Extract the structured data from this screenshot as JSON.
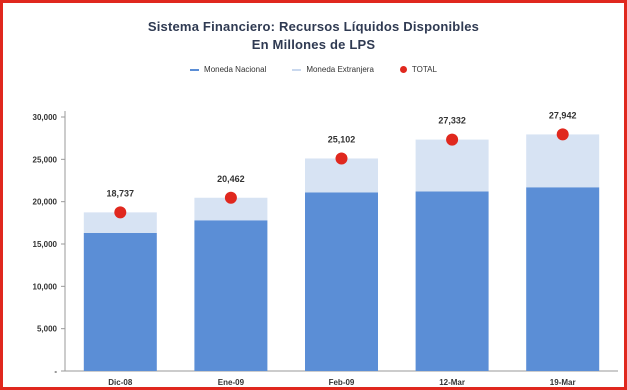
{
  "chart_data": {
    "type": "bar",
    "title": "Sistema Financiero: Recursos Líquidos Disponibles",
    "subtitle": "En Millones de LPS",
    "categories": [
      "Dic-08",
      "Ene-09",
      "Feb-09",
      "12-Mar",
      "19-Mar"
    ],
    "series": [
      {
        "name": "Moneda Nacional",
        "kind": "stacked-bar",
        "color": "#5b8ed6",
        "values": [
          16300,
          17800,
          21100,
          21200,
          21700
        ]
      },
      {
        "name": "Moneda Extranjera",
        "kind": "stacked-bar",
        "color": "#d7e3f3",
        "values": [
          2437,
          2662,
          4002,
          6132,
          6242
        ]
      },
      {
        "name": "TOTAL",
        "kind": "point",
        "color": "#e0281e",
        "values": [
          18737,
          20462,
          25102,
          27332,
          27942
        ]
      }
    ],
    "data_labels": [
      "18,737",
      "20,462",
      "25,102",
      "27,332",
      "27,942"
    ],
    "y_ticks": [
      0,
      5000,
      10000,
      15000,
      20000,
      25000,
      30000
    ],
    "y_tick_labels": [
      "-",
      "5,000",
      "10,000",
      "15,000",
      "20,000",
      "25,000",
      "30,000"
    ],
    "ylim": [
      0,
      30000
    ],
    "legend_position": "top"
  }
}
